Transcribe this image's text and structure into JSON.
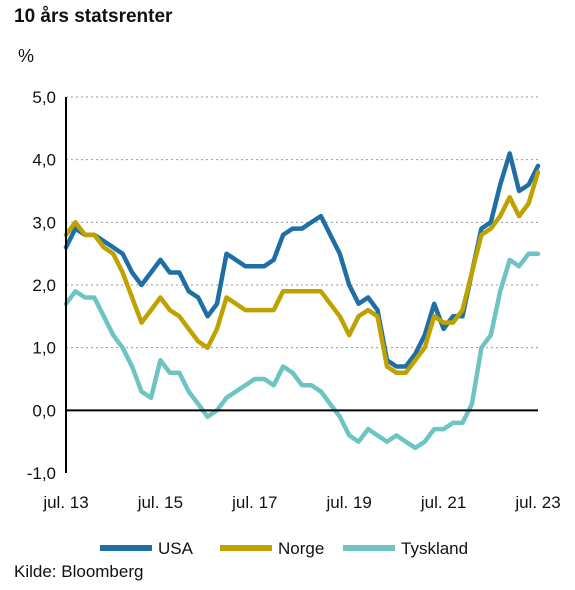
{
  "chart_data": {
    "type": "line",
    "title": "10 års statsrenter",
    "ylabel": "%",
    "source": "Kilde: Bloomberg",
    "ylim": [
      -1.0,
      5.0
    ],
    "yticks": [
      "-1,0",
      "0,0",
      "1,0",
      "2,0",
      "3,0",
      "4,0",
      "5,0"
    ],
    "ytick_values": [
      -1,
      0,
      1,
      2,
      3,
      4,
      5
    ],
    "xlim": [
      2013.5,
      2023.5
    ],
    "xticks": [
      "jul. 13",
      "jul. 15",
      "jul. 17",
      "jul. 19",
      "jul. 21",
      "jul. 23"
    ],
    "xtick_values": [
      2013.5,
      2015.5,
      2017.5,
      2019.5,
      2021.5,
      2023.5
    ],
    "grid": true,
    "legend_position": "bottom",
    "series": [
      {
        "name": "USA",
        "color": "#1f6fa6",
        "x": [
          2013.5,
          2013.7,
          2013.9,
          2014.1,
          2014.3,
          2014.5,
          2014.7,
          2014.9,
          2015.1,
          2015.3,
          2015.5,
          2015.7,
          2015.9,
          2016.1,
          2016.3,
          2016.5,
          2016.7,
          2016.9,
          2017.1,
          2017.3,
          2017.5,
          2017.7,
          2017.9,
          2018.1,
          2018.3,
          2018.5,
          2018.7,
          2018.9,
          2019.1,
          2019.3,
          2019.5,
          2019.7,
          2019.9,
          2020.1,
          2020.3,
          2020.5,
          2020.7,
          2020.9,
          2021.1,
          2021.3,
          2021.5,
          2021.7,
          2021.9,
          2022.1,
          2022.3,
          2022.5,
          2022.7,
          2022.9,
          2023.1,
          2023.3,
          2023.5
        ],
        "values": [
          2.6,
          2.9,
          2.8,
          2.8,
          2.7,
          2.6,
          2.5,
          2.2,
          2.0,
          2.2,
          2.4,
          2.2,
          2.2,
          1.9,
          1.8,
          1.5,
          1.7,
          2.5,
          2.4,
          2.3,
          2.3,
          2.3,
          2.4,
          2.8,
          2.9,
          2.9,
          3.0,
          3.1,
          2.8,
          2.5,
          2.0,
          1.7,
          1.8,
          1.6,
          0.8,
          0.7,
          0.7,
          0.9,
          1.2,
          1.7,
          1.3,
          1.5,
          1.5,
          2.2,
          2.9,
          3.0,
          3.6,
          4.1,
          3.5,
          3.6,
          3.9
        ]
      },
      {
        "name": "Norge",
        "color": "#bfa100",
        "x": [
          2013.5,
          2013.7,
          2013.9,
          2014.1,
          2014.3,
          2014.5,
          2014.7,
          2014.9,
          2015.1,
          2015.3,
          2015.5,
          2015.7,
          2015.9,
          2016.1,
          2016.3,
          2016.5,
          2016.7,
          2016.9,
          2017.1,
          2017.3,
          2017.5,
          2017.7,
          2017.9,
          2018.1,
          2018.3,
          2018.5,
          2018.7,
          2018.9,
          2019.1,
          2019.3,
          2019.5,
          2019.7,
          2019.9,
          2020.1,
          2020.3,
          2020.5,
          2020.7,
          2020.9,
          2021.1,
          2021.3,
          2021.5,
          2021.7,
          2021.9,
          2022.1,
          2022.3,
          2022.5,
          2022.7,
          2022.9,
          2023.1,
          2023.3,
          2023.5
        ],
        "values": [
          2.8,
          3.0,
          2.8,
          2.8,
          2.6,
          2.5,
          2.2,
          1.8,
          1.4,
          1.6,
          1.8,
          1.6,
          1.5,
          1.3,
          1.1,
          1.0,
          1.3,
          1.8,
          1.7,
          1.6,
          1.6,
          1.6,
          1.6,
          1.9,
          1.9,
          1.9,
          1.9,
          1.9,
          1.7,
          1.5,
          1.2,
          1.5,
          1.6,
          1.5,
          0.7,
          0.6,
          0.6,
          0.8,
          1.0,
          1.5,
          1.4,
          1.4,
          1.6,
          2.2,
          2.8,
          2.9,
          3.1,
          3.4,
          3.1,
          3.3,
          3.8
        ]
      },
      {
        "name": "Tyskland",
        "color": "#6ec3c3",
        "x": [
          2013.5,
          2013.7,
          2013.9,
          2014.1,
          2014.3,
          2014.5,
          2014.7,
          2014.9,
          2015.1,
          2015.3,
          2015.5,
          2015.7,
          2015.9,
          2016.1,
          2016.3,
          2016.5,
          2016.7,
          2016.9,
          2017.1,
          2017.3,
          2017.5,
          2017.7,
          2017.9,
          2018.1,
          2018.3,
          2018.5,
          2018.7,
          2018.9,
          2019.1,
          2019.3,
          2019.5,
          2019.7,
          2019.9,
          2020.1,
          2020.3,
          2020.5,
          2020.7,
          2020.9,
          2021.1,
          2021.3,
          2021.5,
          2021.7,
          2021.9,
          2022.1,
          2022.3,
          2022.5,
          2022.7,
          2022.9,
          2023.1,
          2023.3,
          2023.5
        ],
        "values": [
          1.7,
          1.9,
          1.8,
          1.8,
          1.5,
          1.2,
          1.0,
          0.7,
          0.3,
          0.2,
          0.8,
          0.6,
          0.6,
          0.3,
          0.1,
          -0.1,
          0.0,
          0.2,
          0.3,
          0.4,
          0.5,
          0.5,
          0.4,
          0.7,
          0.6,
          0.4,
          0.4,
          0.3,
          0.1,
          -0.1,
          -0.4,
          -0.5,
          -0.3,
          -0.4,
          -0.5,
          -0.4,
          -0.5,
          -0.6,
          -0.5,
          -0.3,
          -0.3,
          -0.2,
          -0.2,
          0.1,
          1.0,
          1.2,
          1.9,
          2.4,
          2.3,
          2.5,
          2.5
        ]
      }
    ]
  }
}
